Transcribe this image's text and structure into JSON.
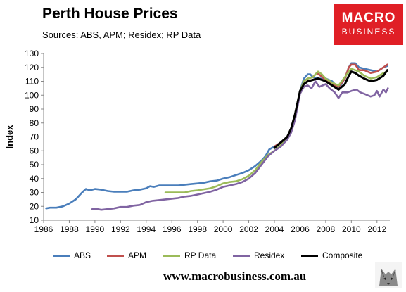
{
  "header": {
    "title": "Perth House Prices",
    "subtitle": "Sources: ABS, APM;  Residex; RP Data"
  },
  "logo": {
    "line1": "MACRO",
    "line2": "BUSINESS",
    "color": "#e01f26"
  },
  "footer": {
    "url": "www.macrobusiness.com.au"
  },
  "chart_data": {
    "type": "line",
    "title": "Perth House Prices",
    "ylabel": "Index",
    "xlabel": "",
    "xlim": [
      1986,
      2013
    ],
    "ylim": [
      10,
      130
    ],
    "xticks": [
      1986,
      1988,
      1990,
      1992,
      1994,
      1996,
      1998,
      2000,
      2002,
      2004,
      2006,
      2008,
      2010,
      2012
    ],
    "yticks": [
      10,
      20,
      30,
      40,
      50,
      60,
      70,
      80,
      90,
      100,
      110,
      120,
      130
    ],
    "grid": false,
    "legend": "bottom",
    "series": [
      {
        "name": "ABS",
        "color": "#4a7ebb",
        "points": [
          [
            1986.2,
            18.5
          ],
          [
            1986.5,
            19
          ],
          [
            1987,
            19
          ],
          [
            1987.5,
            20
          ],
          [
            1988,
            22
          ],
          [
            1988.5,
            25
          ],
          [
            1989,
            30
          ],
          [
            1989.3,
            32.5
          ],
          [
            1989.6,
            31.5
          ],
          [
            1990,
            32.5
          ],
          [
            1990.5,
            32
          ],
          [
            1991,
            31
          ],
          [
            1991.5,
            30.5
          ],
          [
            1992,
            30.5
          ],
          [
            1992.5,
            30.5
          ],
          [
            1993,
            31.5
          ],
          [
            1993.5,
            32
          ],
          [
            1994,
            33
          ],
          [
            1994.3,
            34.5
          ],
          [
            1994.6,
            34
          ],
          [
            1995,
            35
          ],
          [
            1995.5,
            35
          ],
          [
            1996,
            35
          ],
          [
            1996.5,
            35
          ],
          [
            1997,
            35.5
          ],
          [
            1997.5,
            36
          ],
          [
            1998,
            36.5
          ],
          [
            1998.5,
            37
          ],
          [
            1999,
            38
          ],
          [
            1999.5,
            38.5
          ],
          [
            2000,
            40
          ],
          [
            2000.5,
            41
          ],
          [
            2001,
            42.5
          ],
          [
            2001.5,
            44
          ],
          [
            2002,
            46
          ],
          [
            2002.5,
            49
          ],
          [
            2003,
            53
          ],
          [
            2003.3,
            56
          ],
          [
            2003.6,
            61
          ],
          [
            2004,
            63
          ],
          [
            2004.5,
            66
          ],
          [
            2005,
            70
          ],
          [
            2005.3,
            75
          ],
          [
            2005.6,
            85
          ],
          [
            2006,
            103
          ],
          [
            2006.3,
            112
          ],
          [
            2006.6,
            115
          ],
          [
            2006.8,
            115
          ],
          [
            2007,
            113
          ],
          [
            2007.5,
            112
          ],
          [
            2008,
            112
          ],
          [
            2008.5,
            110
          ],
          [
            2009,
            105
          ],
          [
            2009.5,
            112
          ],
          [
            2009.8,
            120
          ],
          [
            2010,
            123
          ],
          [
            2010.3,
            123
          ],
          [
            2010.6,
            120
          ],
          [
            2011,
            119
          ],
          [
            2011.5,
            118
          ],
          [
            2012,
            117
          ],
          [
            2012.5,
            120
          ],
          [
            2012.8,
            121
          ]
        ]
      },
      {
        "name": "APM",
        "color": "#c0504d",
        "points": [
          [
            2004,
            63
          ],
          [
            2004.5,
            66
          ],
          [
            2005,
            70
          ],
          [
            2005.3,
            76
          ],
          [
            2005.6,
            86
          ],
          [
            2006,
            102
          ],
          [
            2006.3,
            110
          ],
          [
            2006.6,
            112
          ],
          [
            2007,
            113
          ],
          [
            2007.3,
            116
          ],
          [
            2007.6,
            114
          ],
          [
            2008,
            111
          ],
          [
            2008.5,
            108
          ],
          [
            2009,
            106
          ],
          [
            2009.5,
            112
          ],
          [
            2009.8,
            120
          ],
          [
            2010,
            122
          ],
          [
            2010.3,
            122
          ],
          [
            2010.6,
            118
          ],
          [
            2011,
            118
          ],
          [
            2011.5,
            116
          ],
          [
            2012,
            117
          ],
          [
            2012.5,
            120
          ],
          [
            2012.8,
            122
          ]
        ]
      },
      {
        "name": "RP Data",
        "color": "#9bbb59",
        "points": [
          [
            1995.5,
            30
          ],
          [
            1996,
            30
          ],
          [
            1997,
            30
          ],
          [
            1997.5,
            31
          ],
          [
            1998,
            31.5
          ],
          [
            1999,
            33
          ],
          [
            1999.5,
            34.5
          ],
          [
            2000,
            36.5
          ],
          [
            2000.5,
            37.5
          ],
          [
            2001,
            38
          ],
          [
            2001.5,
            39.5
          ],
          [
            2002,
            42
          ],
          [
            2002.5,
            46
          ],
          [
            2003,
            52
          ],
          [
            2003.5,
            57
          ],
          [
            2004,
            60
          ],
          [
            2004.5,
            64
          ],
          [
            2005,
            69
          ],
          [
            2005.3,
            75
          ],
          [
            2005.6,
            86
          ],
          [
            2006,
            103
          ],
          [
            2006.3,
            110
          ],
          [
            2006.6,
            112
          ],
          [
            2007,
            113
          ],
          [
            2007.4,
            117
          ],
          [
            2007.7,
            115
          ],
          [
            2008,
            112
          ],
          [
            2008.5,
            109
          ],
          [
            2009,
            107
          ],
          [
            2009.5,
            113
          ],
          [
            2009.8,
            117
          ],
          [
            2010,
            119
          ],
          [
            2010.3,
            118
          ],
          [
            2010.6,
            117
          ],
          [
            2011,
            114
          ],
          [
            2011.5,
            112
          ],
          [
            2012,
            113
          ],
          [
            2012.5,
            116
          ],
          [
            2012.8,
            117
          ]
        ]
      },
      {
        "name": "Residex",
        "color": "#8064a2",
        "points": [
          [
            1989.8,
            18
          ],
          [
            1990.2,
            18
          ],
          [
            1990.5,
            17.5
          ],
          [
            1991,
            18
          ],
          [
            1991.5,
            18.5
          ],
          [
            1992,
            19.5
          ],
          [
            1992.5,
            19.5
          ],
          [
            1993,
            20.5
          ],
          [
            1993.5,
            21
          ],
          [
            1994,
            23
          ],
          [
            1994.5,
            24
          ],
          [
            1995,
            24.5
          ],
          [
            1995.5,
            25
          ],
          [
            1996,
            25.5
          ],
          [
            1996.5,
            26
          ],
          [
            1997,
            27
          ],
          [
            1997.5,
            27.5
          ],
          [
            1998,
            28.5
          ],
          [
            1998.5,
            29.5
          ],
          [
            1999,
            30.5
          ],
          [
            1999.5,
            32
          ],
          [
            2000,
            34
          ],
          [
            2000.5,
            35
          ],
          [
            2001,
            36
          ],
          [
            2001.5,
            37.5
          ],
          [
            2002,
            40
          ],
          [
            2002.5,
            44
          ],
          [
            2003,
            50
          ],
          [
            2003.5,
            56
          ],
          [
            2004,
            60
          ],
          [
            2004.5,
            63
          ],
          [
            2005,
            68
          ],
          [
            2005.3,
            73
          ],
          [
            2005.6,
            82
          ],
          [
            2006,
            101
          ],
          [
            2006.3,
            106
          ],
          [
            2006.6,
            107
          ],
          [
            2006.9,
            105
          ],
          [
            2007.2,
            110
          ],
          [
            2007.5,
            106
          ],
          [
            2008,
            108
          ],
          [
            2008.3,
            105
          ],
          [
            2008.7,
            102
          ],
          [
            2009,
            98
          ],
          [
            2009.3,
            102
          ],
          [
            2009.7,
            102
          ],
          [
            2010,
            103
          ],
          [
            2010.4,
            104
          ],
          [
            2010.7,
            102
          ],
          [
            2011,
            101
          ],
          [
            2011.5,
            99
          ],
          [
            2011.8,
            100
          ],
          [
            2012,
            103
          ],
          [
            2012.2,
            99
          ],
          [
            2012.5,
            104
          ],
          [
            2012.7,
            102
          ],
          [
            2012.85,
            105
          ]
        ]
      },
      {
        "name": "Composite",
        "color": "#000000",
        "points": [
          [
            2004,
            62
          ],
          [
            2004.5,
            66
          ],
          [
            2005,
            70
          ],
          [
            2005.3,
            76
          ],
          [
            2005.6,
            86
          ],
          [
            2006,
            103
          ],
          [
            2006.3,
            108
          ],
          [
            2006.6,
            110
          ],
          [
            2007,
            111
          ],
          [
            2007.4,
            112
          ],
          [
            2007.7,
            111
          ],
          [
            2008,
            110
          ],
          [
            2008.5,
            107
          ],
          [
            2009,
            104
          ],
          [
            2009.5,
            108
          ],
          [
            2009.8,
            114
          ],
          [
            2010,
            117
          ],
          [
            2010.3,
            116
          ],
          [
            2010.6,
            114
          ],
          [
            2011,
            112
          ],
          [
            2011.5,
            110
          ],
          [
            2012,
            111
          ],
          [
            2012.5,
            114
          ],
          [
            2012.8,
            118
          ]
        ]
      }
    ]
  }
}
